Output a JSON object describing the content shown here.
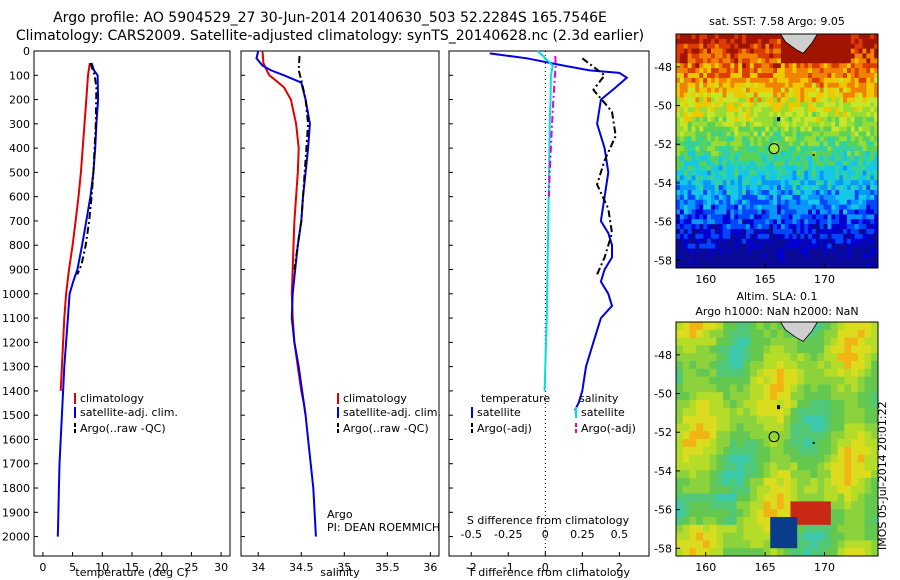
{
  "header": {
    "line1": "Argo profile: AO 5904529_27 30-Jun-2014 20140630_503 52.2284S 165.7546E",
    "line2": "Climatology: CARS2009. Satellite-adjusted climatology: synTS_20140628.nc (2.3d earlier)"
  },
  "colors": {
    "climatology": "#e00000",
    "satellite": "#0000e0",
    "argo": "#000000",
    "salinity_sat": "#00e0e0",
    "salinity_argo": "#e000e0"
  },
  "chart_data": [
    {
      "type": "line",
      "xlabel": "temperature (deg C)",
      "xlim": [
        -1.5,
        31.5
      ],
      "ylim": [
        2080,
        0
      ],
      "xticks": [
        "0",
        "5",
        "10",
        "15",
        "20",
        "25",
        "30"
      ],
      "yticks": [
        "0",
        "100",
        "200",
        "300",
        "400",
        "500",
        "600",
        "700",
        "800",
        "900",
        "1000",
        "1100",
        "1200",
        "1300",
        "1400",
        "1500",
        "1600",
        "1700",
        "1800",
        "1900",
        "2000"
      ],
      "legend": [
        "climatology",
        "satellite-adj. clim.",
        "Argo(..raw -QC)"
      ],
      "series": [
        {
          "name": "climatology",
          "color": "#e00000",
          "x": [
            7.9,
            7.6,
            7.3,
            7.0,
            6.7,
            6.4,
            6.0,
            5.5,
            5.0,
            4.4,
            3.9,
            3.6,
            3.4,
            3.2,
            3.0
          ],
          "y": [
            50,
            100,
            200,
            300,
            400,
            500,
            600,
            700,
            800,
            900,
            1000,
            1100,
            1200,
            1300,
            1400
          ]
        },
        {
          "name": "satellite-adj. clim.",
          "color": "#0000e0",
          "x": [
            8.2,
            8.6,
            9.2,
            9.3,
            9.0,
            8.8,
            8.5,
            8.0,
            7.3,
            6.6,
            5.8,
            5.1,
            4.5,
            4.2,
            3.9,
            3.6,
            3.4,
            3.2,
            3.0,
            2.8,
            2.7,
            2.6,
            2.5
          ],
          "y": [
            50,
            80,
            100,
            200,
            300,
            400,
            500,
            600,
            700,
            800,
            900,
            950,
            1000,
            1100,
            1200,
            1300,
            1400,
            1500,
            1600,
            1700,
            1800,
            1900,
            2000
          ]
        },
        {
          "name": "Argo(..raw -QC)",
          "color": "#000000",
          "dashed": true,
          "x": [
            8.0,
            8.7,
            9.0,
            8.9,
            8.7,
            8.5,
            8.2,
            7.8,
            7.2,
            6.5,
            5.8
          ],
          "y": [
            50,
            100,
            150,
            300,
            400,
            500,
            600,
            700,
            800,
            880,
            920
          ]
        }
      ]
    },
    {
      "type": "line",
      "xlabel": "salinity",
      "xlim": [
        33.8,
        36.1
      ],
      "ylim": [
        2080,
        0
      ],
      "xticks": [
        "34",
        "34.5",
        "35",
        "35.5",
        "36"
      ],
      "legend": [
        "climatology",
        "satellite-adj. clim.",
        "Argo(..raw -QC)"
      ],
      "annotation": [
        "Argo",
        "PI: DEAN ROEMMICH"
      ],
      "series": [
        {
          "name": "climatology",
          "color": "#e00000",
          "x": [
            34.05,
            34.06,
            34.1,
            34.13,
            34.2,
            34.3,
            34.38,
            34.44,
            34.47,
            34.46,
            34.44,
            34.42,
            34.41,
            34.4,
            34.39,
            34.4,
            34.42,
            34.46,
            34.5,
            34.53,
            34.55
          ],
          "y": [
            0,
            50,
            80,
            100,
            120,
            150,
            200,
            300,
            400,
            500,
            600,
            700,
            800,
            900,
            1000,
            1100,
            1200,
            1300,
            1400,
            1450,
            1500
          ]
        },
        {
          "name": "satellite-adj. clim.",
          "color": "#0000e0",
          "x": [
            34.0,
            33.98,
            34.05,
            34.15,
            34.3,
            34.5,
            34.55,
            34.6,
            34.58,
            34.55,
            34.52,
            34.5,
            34.46,
            34.43,
            34.4,
            34.39,
            34.42,
            34.47,
            34.51,
            34.55,
            34.58,
            34.61,
            34.64,
            34.67
          ],
          "y": [
            0,
            30,
            60,
            80,
            100,
            130,
            200,
            300,
            400,
            500,
            600,
            700,
            800,
            900,
            1000,
            1100,
            1200,
            1300,
            1400,
            1500,
            1600,
            1700,
            1800,
            2000
          ]
        },
        {
          "name": "Argo(..raw -QC)",
          "color": "#000000",
          "dashed": true,
          "x": [
            34.48,
            34.47,
            34.5,
            34.55,
            34.58,
            34.56,
            34.54,
            34.52,
            34.5,
            34.46,
            34.42
          ],
          "y": [
            20,
            80,
            120,
            200,
            300,
            400,
            500,
            600,
            700,
            800,
            900
          ]
        }
      ]
    },
    {
      "type": "line",
      "xlabel": "T difference from climatology",
      "xlabel_top": "S difference from climatology",
      "xlim": [
        -2.6,
        2.8
      ],
      "ylim": [
        2080,
        0
      ],
      "xticks": [
        "-2",
        "-1",
        "0",
        "1",
        "2"
      ],
      "xticks_top": [
        "-0.5",
        "-0.25",
        "0",
        "0.25",
        "0.5"
      ],
      "legend_titles": [
        "temperature",
        "salinity"
      ],
      "legend": [
        "satellite",
        "Argo(-adj)",
        "satellite",
        "Argo(-adj)"
      ],
      "series": [
        {
          "name": "satellite",
          "color": "#0000e0",
          "x": [
            -1.5,
            -0.5,
            0.5,
            1.2,
            2.0,
            2.2,
            1.9,
            1.5,
            1.4,
            1.6,
            1.7,
            1.6,
            1.5,
            1.7,
            1.8,
            1.8,
            1.6,
            1.5,
            1.7,
            1.8,
            1.5,
            1.3,
            1.1,
            1.0,
            0.9,
            0.8
          ],
          "y": [
            10,
            30,
            60,
            80,
            90,
            110,
            150,
            200,
            300,
            400,
            500,
            600,
            700,
            750,
            800,
            850,
            900,
            950,
            1000,
            1050,
            1100,
            1200,
            1300,
            1400,
            1450,
            1480
          ]
        },
        {
          "name": "Argo(-adj)",
          "color": "#000000",
          "dashed": true,
          "x": [
            1.0,
            1.6,
            1.3,
            1.8,
            1.9,
            1.6,
            1.4,
            1.7,
            1.8,
            1.6,
            1.4
          ],
          "y": [
            30,
            100,
            160,
            250,
            350,
            450,
            550,
            650,
            750,
            850,
            920
          ]
        },
        {
          "name": "satellite",
          "color": "#00e0e0",
          "x": [
            -0.2,
            0.2,
            0.15,
            0.14,
            0.12,
            0.11,
            0.1,
            0.09,
            0.08,
            0.07,
            0.06,
            0.05,
            0.04,
            0.02,
            0.0,
            -0.02
          ],
          "y": [
            0,
            60,
            100,
            200,
            300,
            400,
            500,
            600,
            700,
            800,
            900,
            1000,
            1100,
            1200,
            1300,
            1400
          ]
        },
        {
          "name": "Argo(-adj)",
          "color": "#e000e0",
          "dashed": true,
          "x": [
            0.27,
            0.28,
            0.25,
            0.22,
            0.18,
            0.15,
            0.12,
            0.1
          ],
          "y": [
            20,
            60,
            120,
            200,
            300,
            400,
            500,
            600
          ]
        }
      ]
    },
    {
      "type": "heatmap",
      "title": "sat. SST: 7.58 Argo: 9.05",
      "xlim": [
        157.5,
        174.5
      ],
      "ylim": [
        -58.4,
        -46.3
      ],
      "xticks": [
        "160",
        "165",
        "170"
      ],
      "yticks": [
        "-48",
        "-50",
        "-52",
        "-54",
        "-56",
        "-58"
      ],
      "marker": {
        "lon": 165.75,
        "lat": -52.23
      }
    },
    {
      "type": "heatmap",
      "title": [
        "Altim. SLA: 0.1",
        "Argo h1000: NaN h2000: NaN"
      ],
      "xlim": [
        157.5,
        174.5
      ],
      "ylim": [
        -58.4,
        -46.3
      ],
      "xticks": [
        "160",
        "165",
        "170"
      ],
      "yticks": [
        "-48",
        "-50",
        "-52",
        "-54",
        "-56",
        "-58"
      ],
      "marker": {
        "lon": 165.75,
        "lat": -52.23
      }
    }
  ],
  "watermark": "IMOS 05-Jul-2014 20:01:22"
}
